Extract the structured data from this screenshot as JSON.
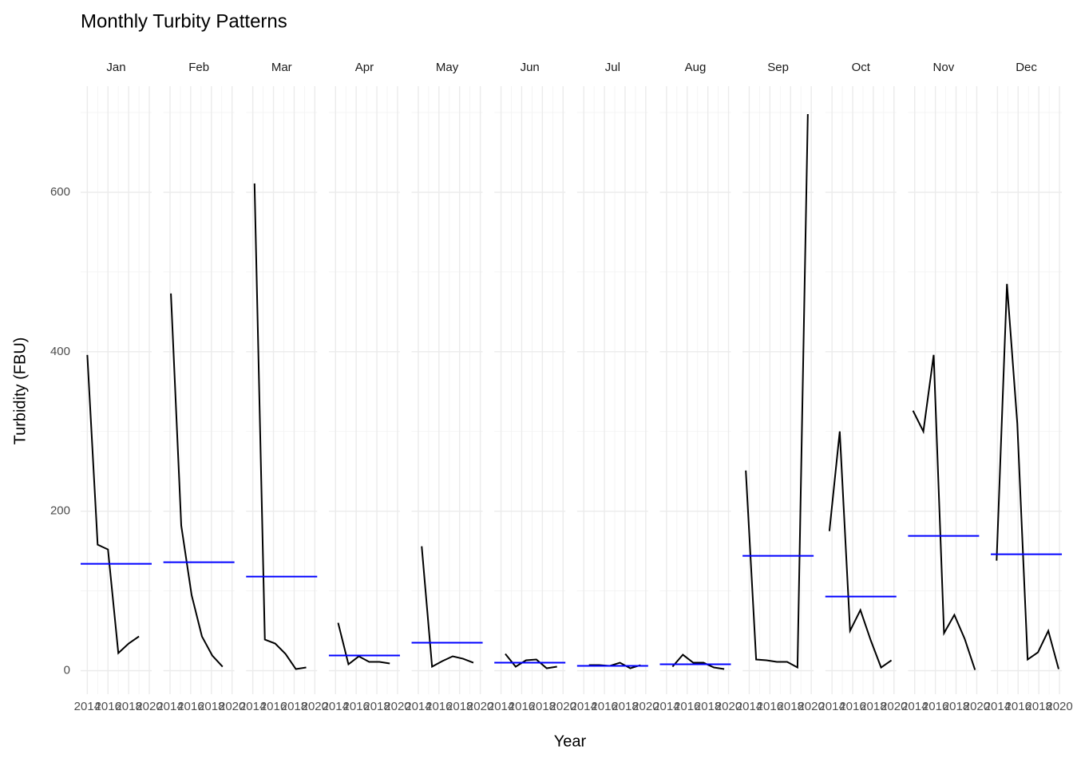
{
  "chart_data": {
    "type": "line",
    "title": "Monthly Turbity Patterns",
    "x_label": "Year",
    "y_label": "Turbidity (FBU)",
    "xlim": [
      2013.354,
      2020.229
    ],
    "xticks": [
      2014,
      2016,
      2018,
      2020
    ],
    "x_minor": [
      2013,
      2015,
      2017,
      2019
    ],
    "ylim": [
      -29.5,
      733
    ],
    "yticks": [
      0,
      200,
      400,
      600
    ],
    "y_minor": [
      100,
      300,
      500,
      700
    ],
    "grid": true,
    "line_color": "#000000",
    "mean_color": "#0000ff",
    "facets": [
      {
        "name": "Jan",
        "x": [
          2014.0,
          2015.0,
          2016.0,
          2017.0,
          2018.0,
          2019.0
        ],
        "values": [
          396,
          158,
          152,
          22,
          34,
          43
        ],
        "mean": 134
      },
      {
        "name": "Feb",
        "x": [
          2014.083,
          2015.083,
          2016.083,
          2017.083,
          2018.083,
          2019.083
        ],
        "values": [
          473,
          182,
          95,
          43,
          19,
          5
        ],
        "mean": 136
      },
      {
        "name": "Mar",
        "x": [
          2014.167,
          2015.167,
          2016.167,
          2017.167,
          2018.167,
          2019.167
        ],
        "values": [
          611,
          39,
          34,
          21,
          2,
          4
        ],
        "mean": 118
      },
      {
        "name": "Apr",
        "x": [
          2014.25,
          2015.25,
          2016.25,
          2017.25,
          2018.25,
          2019.25
        ],
        "values": [
          60,
          8,
          18,
          11,
          11,
          9
        ],
        "mean": 19
      },
      {
        "name": "May",
        "x": [
          2014.333,
          2015.333,
          2016.333,
          2017.333,
          2018.333,
          2019.333
        ],
        "values": [
          156,
          5,
          12,
          18,
          15,
          10
        ],
        "mean": 35
      },
      {
        "name": "Jun",
        "x": [
          2014.417,
          2015.417,
          2016.417,
          2017.417,
          2018.417,
          2019.417
        ],
        "values": [
          21,
          5,
          13,
          14,
          3,
          5
        ],
        "mean": 10
      },
      {
        "name": "Jul",
        "x": [
          2014.5,
          2015.5,
          2016.5,
          2017.5,
          2018.5,
          2019.5
        ],
        "values": [
          7,
          7,
          6,
          10,
          3,
          7
        ],
        "mean": 6
      },
      {
        "name": "Aug",
        "x": [
          2014.583,
          2015.583,
          2016.583,
          2017.583,
          2018.583,
          2019.583
        ],
        "values": [
          5,
          20,
          10,
          10,
          4,
          2
        ],
        "mean": 8
      },
      {
        "name": "Sep",
        "x": [
          2013.667,
          2014.667,
          2015.667,
          2016.667,
          2017.667,
          2018.667,
          2019.667
        ],
        "values": [
          251,
          14,
          13,
          11,
          11,
          4,
          698
        ],
        "mean": 144
      },
      {
        "name": "Oct",
        "x": [
          2013.75,
          2014.75,
          2015.75,
          2016.75,
          2017.75,
          2018.75,
          2019.75
        ],
        "values": [
          175,
          300,
          50,
          76,
          38,
          4,
          13
        ],
        "mean": 93
      },
      {
        "name": "Nov",
        "x": [
          2013.833,
          2014.833,
          2015.833,
          2016.833,
          2017.833,
          2018.833,
          2019.833
        ],
        "values": [
          326,
          300,
          396,
          47,
          70,
          40,
          1
        ],
        "mean": 169
      },
      {
        "name": "Dec",
        "x": [
          2013.917,
          2014.917,
          2015.917,
          2016.917,
          2017.917,
          2018.917,
          2019.917
        ],
        "values": [
          138,
          485,
          310,
          14,
          23,
          50,
          2
        ],
        "mean": 146
      }
    ]
  }
}
